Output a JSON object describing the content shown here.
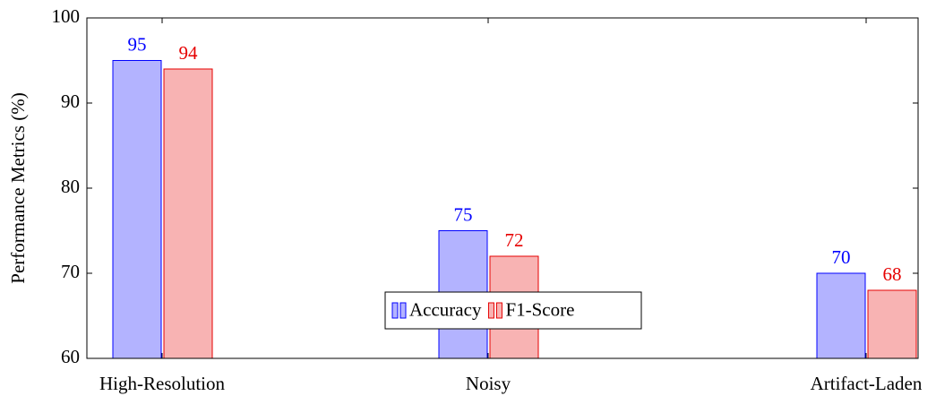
{
  "chart_data": {
    "type": "bar",
    "categories": [
      "High-Resolution",
      "Noisy",
      "Artifact-Laden"
    ],
    "series": [
      {
        "name": "Accuracy",
        "color": "#0000ff",
        "values": [
          95,
          75,
          70
        ]
      },
      {
        "name": "F1-Score",
        "color": "#e60000",
        "values": [
          94,
          72,
          68
        ]
      }
    ],
    "y_label": "Performance Metrics (%)",
    "ylim": [
      60,
      100
    ],
    "yticks": [
      60,
      70,
      80,
      90,
      100
    ],
    "grid": false,
    "legend_position": "bottom-center"
  }
}
